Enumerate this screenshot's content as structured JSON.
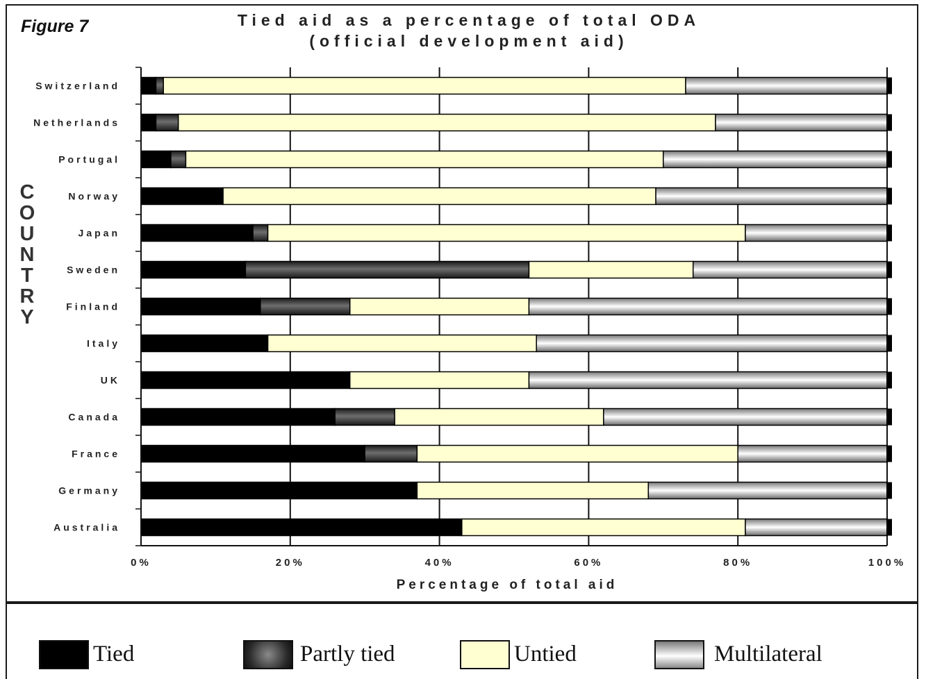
{
  "figure_label": "Figure 7",
  "chart_data": {
    "type": "bar",
    "orientation": "horizontal",
    "stacked": true,
    "title": "Tied aid as a percentage of total ODA",
    "subtitle": "(official development aid)",
    "xlabel": "Percentage of total aid",
    "ylabel": "COUNTRY",
    "xlim": [
      0,
      100
    ],
    "x_ticks": [
      "0%",
      "20%",
      "40%",
      "60%",
      "80%",
      "100%"
    ],
    "grid": true,
    "legend_position": "bottom",
    "categories": [
      "Switzerland",
      "Netherlands",
      "Portugal",
      "Norway",
      "Japan",
      "Sweden",
      "Finland",
      "Italy",
      "UK",
      "Canada",
      "France",
      "Germany",
      "Australia"
    ],
    "series": [
      {
        "name": "Tied",
        "color": "#000000",
        "values": [
          2,
          2,
          4,
          11,
          15,
          14,
          16,
          17,
          28,
          26,
          30,
          37,
          43
        ]
      },
      {
        "name": "Partly tied",
        "color": "#4a4a4a",
        "values": [
          1,
          3,
          2,
          0,
          2,
          38,
          12,
          0,
          0,
          8,
          7,
          0,
          0
        ]
      },
      {
        "name": "Untied",
        "color": "#ffffd2",
        "values": [
          70,
          72,
          64,
          58,
          64,
          22,
          24,
          36,
          24,
          28,
          43,
          31,
          38
        ]
      },
      {
        "name": "Multilateral",
        "color": "#bdbdbd",
        "values": [
          27,
          23,
          30,
          31,
          19,
          26,
          48,
          47,
          48,
          38,
          20,
          32,
          19
        ]
      }
    ]
  }
}
